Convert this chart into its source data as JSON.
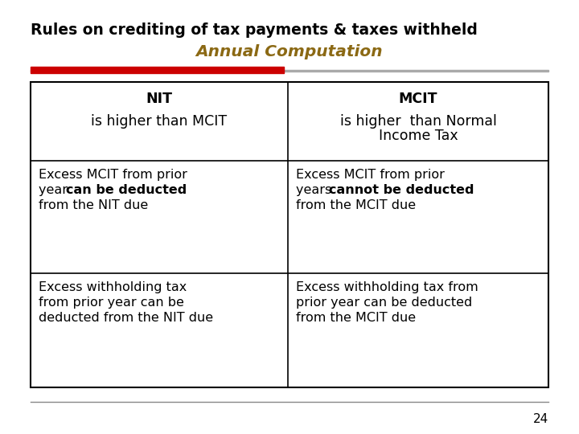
{
  "title_line1": "Rules on crediting of tax payments & taxes withheld",
  "title_line2": "Annual Computation",
  "title_line1_color": "#000000",
  "title_line2_color": "#8B6914",
  "red_bar_color": "#CC0000",
  "grey_line_color": "#AAAAAA",
  "table_border_color": "#000000",
  "background_color": "#FFFFFF",
  "page_number": "24",
  "col1_header_bold": "NIT",
  "col1_header_normal": "is higher than MCIT",
  "col2_header_bold": "MCIT",
  "col2_header_normal_line1": "is higher  than Normal",
  "col2_header_normal_line2": "Income Tax",
  "col1_row2_line1": "Excess MCIT from prior",
  "col1_row2_line2_pre": "year ",
  "col1_row2_line2_bold": "can be deducted",
  "col1_row2_line3": "from the NIT due",
  "col2_row2_line1": "Excess MCIT from prior",
  "col2_row2_line2_pre": "years ",
  "col2_row2_line2_bold": "cannot be deducted",
  "col2_row2_line3": "from the MCIT due",
  "col1_row3_line1": "Excess withholding tax",
  "col1_row3_line2": "from prior year can be",
  "col1_row3_line3": "deducted from the NIT due",
  "col2_row3_line1": "Excess withholding tax from",
  "col2_row3_line2": "prior year can be deducted",
  "col2_row3_line3": "from the MCIT due"
}
